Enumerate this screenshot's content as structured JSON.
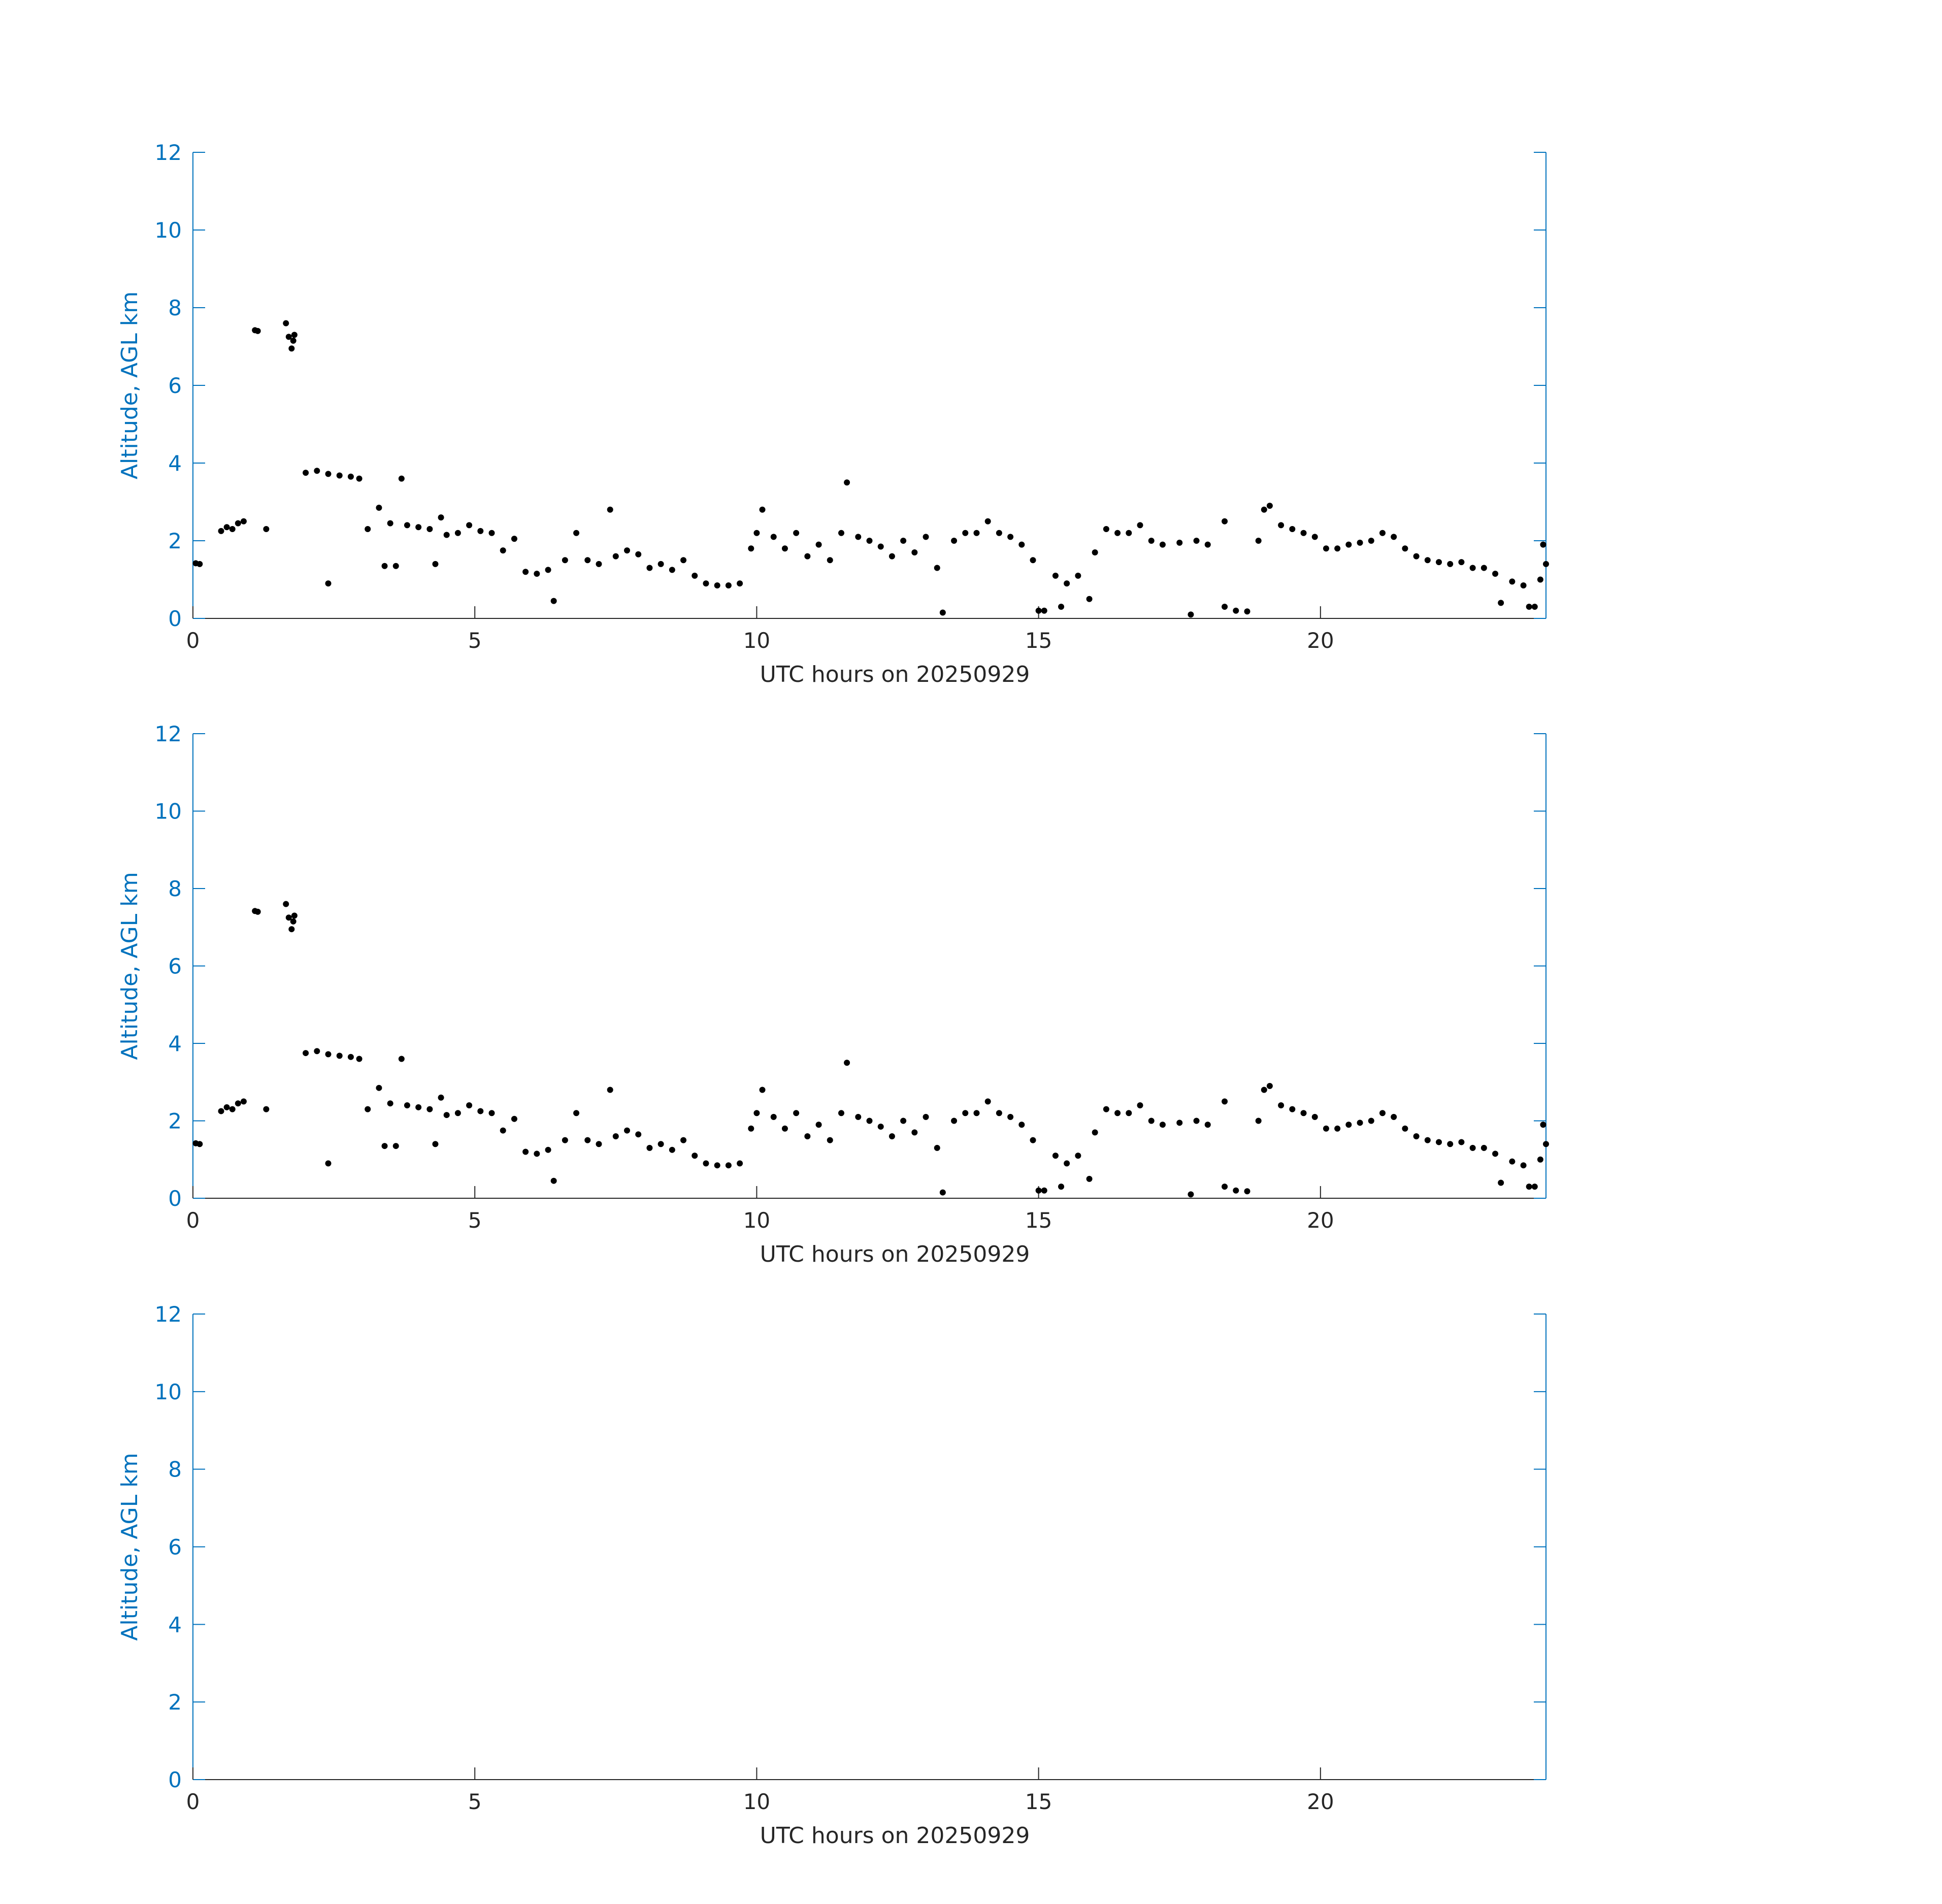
{
  "colors": {
    "axis": "#0072BD",
    "xaxis": "#262626",
    "marker": "#000000",
    "background": "#ffffff"
  },
  "chart_data": [
    {
      "type": "scatter",
      "title": "",
      "xlabel": "UTC hours on 20250929",
      "ylabel": "Altitude, AGL km",
      "xlim": [
        0,
        24
      ],
      "ylim": [
        0,
        12
      ],
      "xticks": [
        0,
        5,
        10,
        15,
        20
      ],
      "yticks": [
        0,
        2,
        4,
        6,
        8,
        10,
        12
      ],
      "grid": false,
      "series": [
        {
          "points": [
            [
              0.05,
              1.42
            ],
            [
              0.12,
              1.4
            ],
            [
              0.5,
              2.25
            ],
            [
              0.6,
              2.35
            ],
            [
              0.7,
              2.3
            ],
            [
              0.8,
              2.45
            ],
            [
              0.9,
              2.5
            ],
            [
              1.1,
              7.42
            ],
            [
              1.15,
              7.4
            ],
            [
              1.3,
              2.3
            ],
            [
              1.65,
              7.6
            ],
            [
              1.7,
              7.25
            ],
            [
              1.75,
              6.95
            ],
            [
              1.8,
              7.3
            ],
            [
              1.78,
              7.15
            ],
            [
              2.0,
              3.75
            ],
            [
              2.2,
              3.8
            ],
            [
              2.4,
              3.72
            ],
            [
              2.6,
              3.68
            ],
            [
              2.8,
              3.65
            ],
            [
              2.95,
              3.6
            ],
            [
              2.4,
              0.9
            ],
            [
              3.1,
              2.3
            ],
            [
              3.3,
              2.85
            ],
            [
              3.4,
              1.35
            ],
            [
              3.5,
              2.45
            ],
            [
              3.6,
              1.35
            ],
            [
              3.7,
              3.6
            ],
            [
              3.8,
              2.4
            ],
            [
              4.0,
              2.35
            ],
            [
              4.2,
              2.3
            ],
            [
              4.3,
              1.4
            ],
            [
              4.4,
              2.6
            ],
            [
              4.5,
              2.15
            ],
            [
              4.7,
              2.2
            ],
            [
              4.9,
              2.4
            ],
            [
              5.1,
              2.25
            ],
            [
              5.3,
              2.2
            ],
            [
              5.5,
              1.75
            ],
            [
              5.7,
              2.05
            ],
            [
              5.9,
              1.2
            ],
            [
              6.1,
              1.15
            ],
            [
              6.3,
              1.25
            ],
            [
              6.4,
              0.45
            ],
            [
              6.6,
              1.5
            ],
            [
              6.8,
              2.2
            ],
            [
              7.0,
              1.5
            ],
            [
              7.2,
              1.4
            ],
            [
              7.4,
              2.8
            ],
            [
              7.5,
              1.6
            ],
            [
              7.7,
              1.75
            ],
            [
              7.9,
              1.65
            ],
            [
              8.1,
              1.3
            ],
            [
              8.3,
              1.4
            ],
            [
              8.5,
              1.25
            ],
            [
              8.7,
              1.5
            ],
            [
              8.9,
              1.1
            ],
            [
              9.1,
              0.9
            ],
            [
              9.3,
              0.85
            ],
            [
              9.5,
              0.85
            ],
            [
              9.7,
              0.9
            ],
            [
              9.9,
              1.8
            ],
            [
              10.0,
              2.2
            ],
            [
              10.1,
              2.8
            ],
            [
              10.3,
              2.1
            ],
            [
              10.5,
              1.8
            ],
            [
              10.7,
              2.2
            ],
            [
              10.9,
              1.6
            ],
            [
              11.1,
              1.9
            ],
            [
              11.3,
              1.5
            ],
            [
              11.5,
              2.2
            ],
            [
              11.6,
              3.5
            ],
            [
              11.8,
              2.1
            ],
            [
              12.0,
              2.0
            ],
            [
              12.2,
              1.85
            ],
            [
              12.4,
              1.6
            ],
            [
              12.6,
              2.0
            ],
            [
              12.8,
              1.7
            ],
            [
              13.0,
              2.1
            ],
            [
              13.2,
              1.3
            ],
            [
              13.3,
              0.15
            ],
            [
              13.5,
              2.0
            ],
            [
              13.7,
              2.2
            ],
            [
              13.9,
              2.2
            ],
            [
              14.1,
              2.5
            ],
            [
              14.3,
              2.2
            ],
            [
              14.5,
              2.1
            ],
            [
              14.7,
              1.9
            ],
            [
              14.9,
              1.5
            ],
            [
              15.0,
              0.2
            ],
            [
              15.1,
              0.2
            ],
            [
              15.3,
              1.1
            ],
            [
              15.4,
              0.3
            ],
            [
              15.5,
              0.9
            ],
            [
              15.7,
              1.1
            ],
            [
              15.9,
              0.5
            ],
            [
              16.0,
              1.7
            ],
            [
              16.2,
              2.3
            ],
            [
              16.4,
              2.2
            ],
            [
              16.6,
              2.2
            ],
            [
              16.8,
              2.4
            ],
            [
              17.0,
              2.0
            ],
            [
              17.2,
              1.9
            ],
            [
              17.5,
              1.95
            ],
            [
              17.7,
              0.1
            ],
            [
              17.8,
              2.0
            ],
            [
              18.0,
              1.9
            ],
            [
              18.3,
              2.5
            ],
            [
              18.3,
              0.3
            ],
            [
              18.5,
              0.2
            ],
            [
              18.7,
              0.18
            ],
            [
              18.9,
              2.0
            ],
            [
              19.0,
              2.8
            ],
            [
              19.1,
              2.9
            ],
            [
              19.3,
              2.4
            ],
            [
              19.5,
              2.3
            ],
            [
              19.7,
              2.2
            ],
            [
              19.9,
              2.1
            ],
            [
              20.1,
              1.8
            ],
            [
              20.3,
              1.8
            ],
            [
              20.5,
              1.9
            ],
            [
              20.7,
              1.95
            ],
            [
              20.9,
              2.0
            ],
            [
              21.1,
              2.2
            ],
            [
              21.3,
              2.1
            ],
            [
              21.5,
              1.8
            ],
            [
              21.7,
              1.6
            ],
            [
              21.9,
              1.5
            ],
            [
              22.1,
              1.45
            ],
            [
              22.3,
              1.4
            ],
            [
              22.5,
              1.45
            ],
            [
              22.7,
              1.3
            ],
            [
              22.9,
              1.3
            ],
            [
              23.1,
              1.15
            ],
            [
              23.2,
              0.4
            ],
            [
              23.4,
              0.95
            ],
            [
              23.6,
              0.85
            ],
            [
              23.7,
              0.3
            ],
            [
              23.8,
              0.3
            ],
            [
              23.9,
              1.0
            ],
            [
              23.95,
              1.9
            ],
            [
              24.0,
              1.4
            ]
          ]
        }
      ]
    },
    {
      "type": "scatter",
      "title": "",
      "xlabel": "UTC hours on 20250929",
      "ylabel": "Altitude, AGL km",
      "xlim": [
        0,
        24
      ],
      "ylim": [
        0,
        12
      ],
      "xticks": [
        0,
        5,
        10,
        15,
        20
      ],
      "yticks": [
        0,
        2,
        4,
        6,
        8,
        10,
        12
      ],
      "grid": false,
      "same_points_as": 0
    },
    {
      "type": "scatter",
      "title": "",
      "xlabel": "UTC hours on 20250929",
      "ylabel": "Altitude, AGL km",
      "xlim": [
        0,
        24
      ],
      "ylim": [
        0,
        12
      ],
      "xticks": [
        0,
        5,
        10,
        15,
        20
      ],
      "yticks": [
        0,
        2,
        4,
        6,
        8,
        10,
        12
      ],
      "grid": false,
      "series": []
    }
  ]
}
